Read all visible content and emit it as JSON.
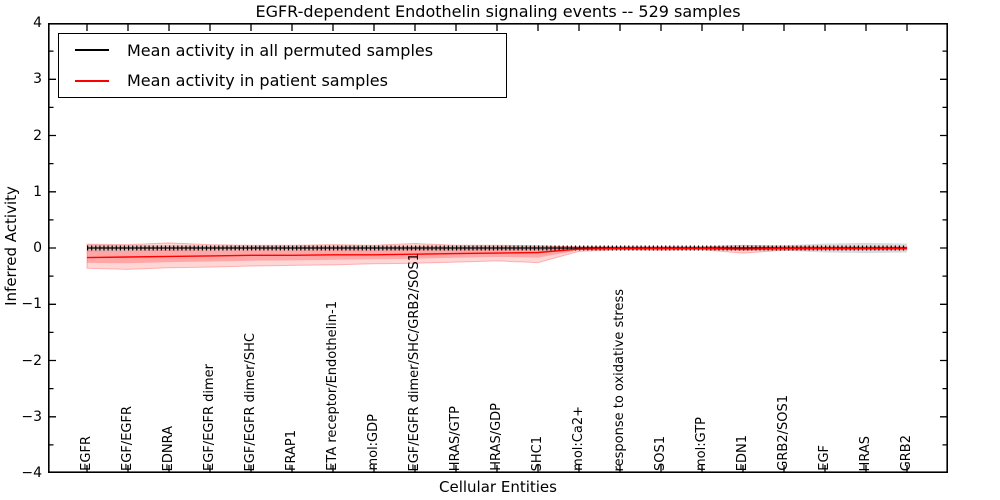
{
  "title": "EGFR-dependent Endothelin signaling events -- 529 samples",
  "axes": {
    "ylabel": "Inferred Activity",
    "xlabel": "Cellular Entities",
    "yticks": [
      {
        "label": "4",
        "value": 4
      },
      {
        "label": "3",
        "value": 3
      },
      {
        "label": "2",
        "value": 2
      },
      {
        "label": "1",
        "value": 1
      },
      {
        "label": "0",
        "value": 0
      },
      {
        "label": "−1",
        "value": -1
      },
      {
        "label": "−2",
        "value": -2
      },
      {
        "label": "−3",
        "value": -3
      },
      {
        "label": "−4",
        "value": -4
      }
    ]
  },
  "legend": {
    "entries": [
      {
        "label": "Mean activity in all permuted samples",
        "color": "#000000"
      },
      {
        "label": "Mean activity in patient samples",
        "color": "#ff0000"
      }
    ]
  },
  "chart_data": {
    "type": "line",
    "title": "EGFR-dependent Endothelin signaling events -- 529 samples",
    "xlabel": "Cellular Entities",
    "ylabel": "Inferred Activity",
    "ylim": [
      -4,
      4
    ],
    "grid": false,
    "legend_position": "upper left",
    "categories": [
      "EGFR",
      "EGF/EGFR",
      "EDNRA",
      "EGF/EGFR dimer",
      "EGF/EGFR dimer/SHC",
      "FRAP1",
      "ETA receptor/Endothelin-1",
      "mol:GDP",
      "EGF/EGFR dimer/SHC/GRB2/SOS1",
      "HRAS/GTP",
      "HRAS/GDP",
      "SHC1",
      "mol:Ca2+",
      "response to oxidative stress",
      "SOS1",
      "mol:GTP",
      "EDN1",
      "GRB2/SOS1",
      "EGF",
      "HRAS",
      "GRB2"
    ],
    "series": [
      {
        "name": "Mean activity in all permuted samples",
        "color": "#000000",
        "values": [
          0,
          0,
          0,
          0,
          0,
          0,
          0,
          0,
          0,
          0,
          0,
          0,
          0,
          0,
          0,
          0,
          0,
          0,
          0,
          0,
          0
        ]
      },
      {
        "name": "Mean activity in patient samples",
        "color": "#ff0000",
        "values": [
          -0.17,
          -0.16,
          -0.15,
          -0.14,
          -0.13,
          -0.13,
          -0.12,
          -0.12,
          -0.11,
          -0.1,
          -0.09,
          -0.08,
          -0.02,
          -0.01,
          -0.01,
          -0.01,
          -0.02,
          -0.01,
          -0.01,
          -0.01,
          -0.01
        ]
      }
    ],
    "bands": [
      {
        "name": "permuted samples range",
        "color": "#000000",
        "upper": [
          0.06,
          0.05,
          0.05,
          0.04,
          0.04,
          0.04,
          0.04,
          0.04,
          0.04,
          0.04,
          0.04,
          0.04,
          0.03,
          0.03,
          0.03,
          0.03,
          0.04,
          0.05,
          0.08,
          0.09,
          0.08
        ],
        "lower": [
          -0.06,
          -0.05,
          -0.05,
          -0.04,
          -0.04,
          -0.04,
          -0.04,
          -0.04,
          -0.04,
          -0.04,
          -0.04,
          -0.04,
          -0.03,
          -0.03,
          -0.03,
          -0.03,
          -0.04,
          -0.05,
          -0.08,
          -0.09,
          -0.08
        ]
      },
      {
        "name": "patient samples range",
        "color": "#ff0000",
        "upper": [
          0.07,
          0.06,
          0.09,
          0.06,
          0.05,
          0.05,
          0.06,
          0.05,
          0.08,
          0.05,
          0.05,
          0.04,
          0.02,
          0.02,
          0.02,
          0.02,
          0.05,
          0.03,
          0.02,
          0.02,
          0.02
        ],
        "lower": [
          -0.36,
          -0.38,
          -0.35,
          -0.34,
          -0.32,
          -0.31,
          -0.3,
          -0.28,
          -0.27,
          -0.25,
          -0.23,
          -0.26,
          -0.06,
          -0.03,
          -0.04,
          -0.03,
          -0.09,
          -0.04,
          -0.03,
          -0.03,
          -0.03
        ]
      }
    ]
  }
}
